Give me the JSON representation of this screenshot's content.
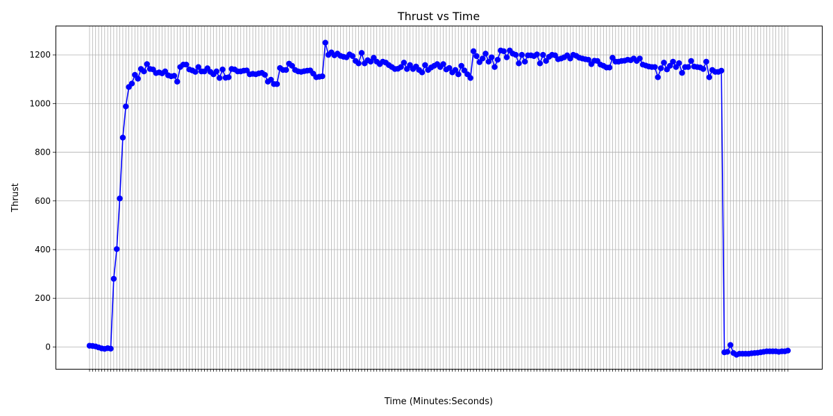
{
  "chart_data": {
    "type": "line",
    "title": "Thrust vs Time",
    "xlabel": "Time (Minutes:Seconds)",
    "ylabel": "Thrust",
    "ylim": [
      -90,
      1320
    ],
    "yticks": [
      0,
      200,
      400,
      600,
      800,
      1000,
      1200
    ],
    "grid": true,
    "marker": "circle",
    "series": [
      {
        "color": "#0000ff",
        "values": [
          5,
          4,
          2,
          -2,
          -6,
          -8,
          -5,
          -7,
          280,
          402,
          610,
          860,
          988,
          1068,
          1082,
          1118,
          1102,
          1142,
          1132,
          1162,
          1142,
          1140,
          1125,
          1128,
          1124,
          1132,
          1116,
          1112,
          1114,
          1090,
          1150,
          1160,
          1160,
          1140,
          1136,
          1130,
          1150,
          1132,
          1132,
          1145,
          1130,
          1120,
          1132,
          1105,
          1140,
          1106,
          1108,
          1142,
          1140,
          1132,
          1132,
          1135,
          1136,
          1120,
          1122,
          1120,
          1124,
          1126,
          1118,
          1090,
          1098,
          1080,
          1080,
          1146,
          1138,
          1138,
          1164,
          1155,
          1138,
          1132,
          1130,
          1133,
          1135,
          1136,
          1123,
          1108,
          1110,
          1112,
          1250,
          1200,
          1210,
          1198,
          1205,
          1196,
          1192,
          1190,
          1202,
          1195,
          1175,
          1165,
          1208,
          1165,
          1178,
          1172,
          1188,
          1172,
          1162,
          1172,
          1168,
          1158,
          1150,
          1142,
          1143,
          1150,
          1168,
          1142,
          1158,
          1142,
          1152,
          1138,
          1128,
          1158,
          1138,
          1148,
          1155,
          1162,
          1150,
          1162,
          1140,
          1146,
          1128,
          1138,
          1120,
          1155,
          1136,
          1120,
          1105,
          1215,
          1195,
          1170,
          1185,
          1205,
          1172,
          1190,
          1150,
          1180,
          1218,
          1215,
          1190,
          1218,
          1205,
          1200,
          1165,
          1200,
          1172,
          1198,
          1198,
          1195,
          1202,
          1165,
          1200,
          1175,
          1192,
          1200,
          1198,
          1182,
          1185,
          1190,
          1198,
          1185,
          1200,
          1196,
          1188,
          1185,
          1182,
          1180,
          1162,
          1176,
          1175,
          1160,
          1155,
          1148,
          1148,
          1188,
          1172,
          1172,
          1175,
          1176,
          1180,
          1178,
          1185,
          1175,
          1185,
          1160,
          1156,
          1152,
          1150,
          1150,
          1108,
          1145,
          1168,
          1140,
          1155,
          1172,
          1150,
          1166,
          1126,
          1150,
          1150,
          1175,
          1152,
          1150,
          1148,
          1142,
          1172,
          1108,
          1138,
          1130,
          1130,
          1135,
          -22,
          -20,
          8,
          -25,
          -32,
          -28,
          -28,
          -28,
          -28,
          -26,
          -25,
          -24,
          -22,
          -20,
          -18,
          -18,
          -18,
          -18,
          -20,
          -18,
          -18,
          -15
        ]
      }
    ]
  }
}
